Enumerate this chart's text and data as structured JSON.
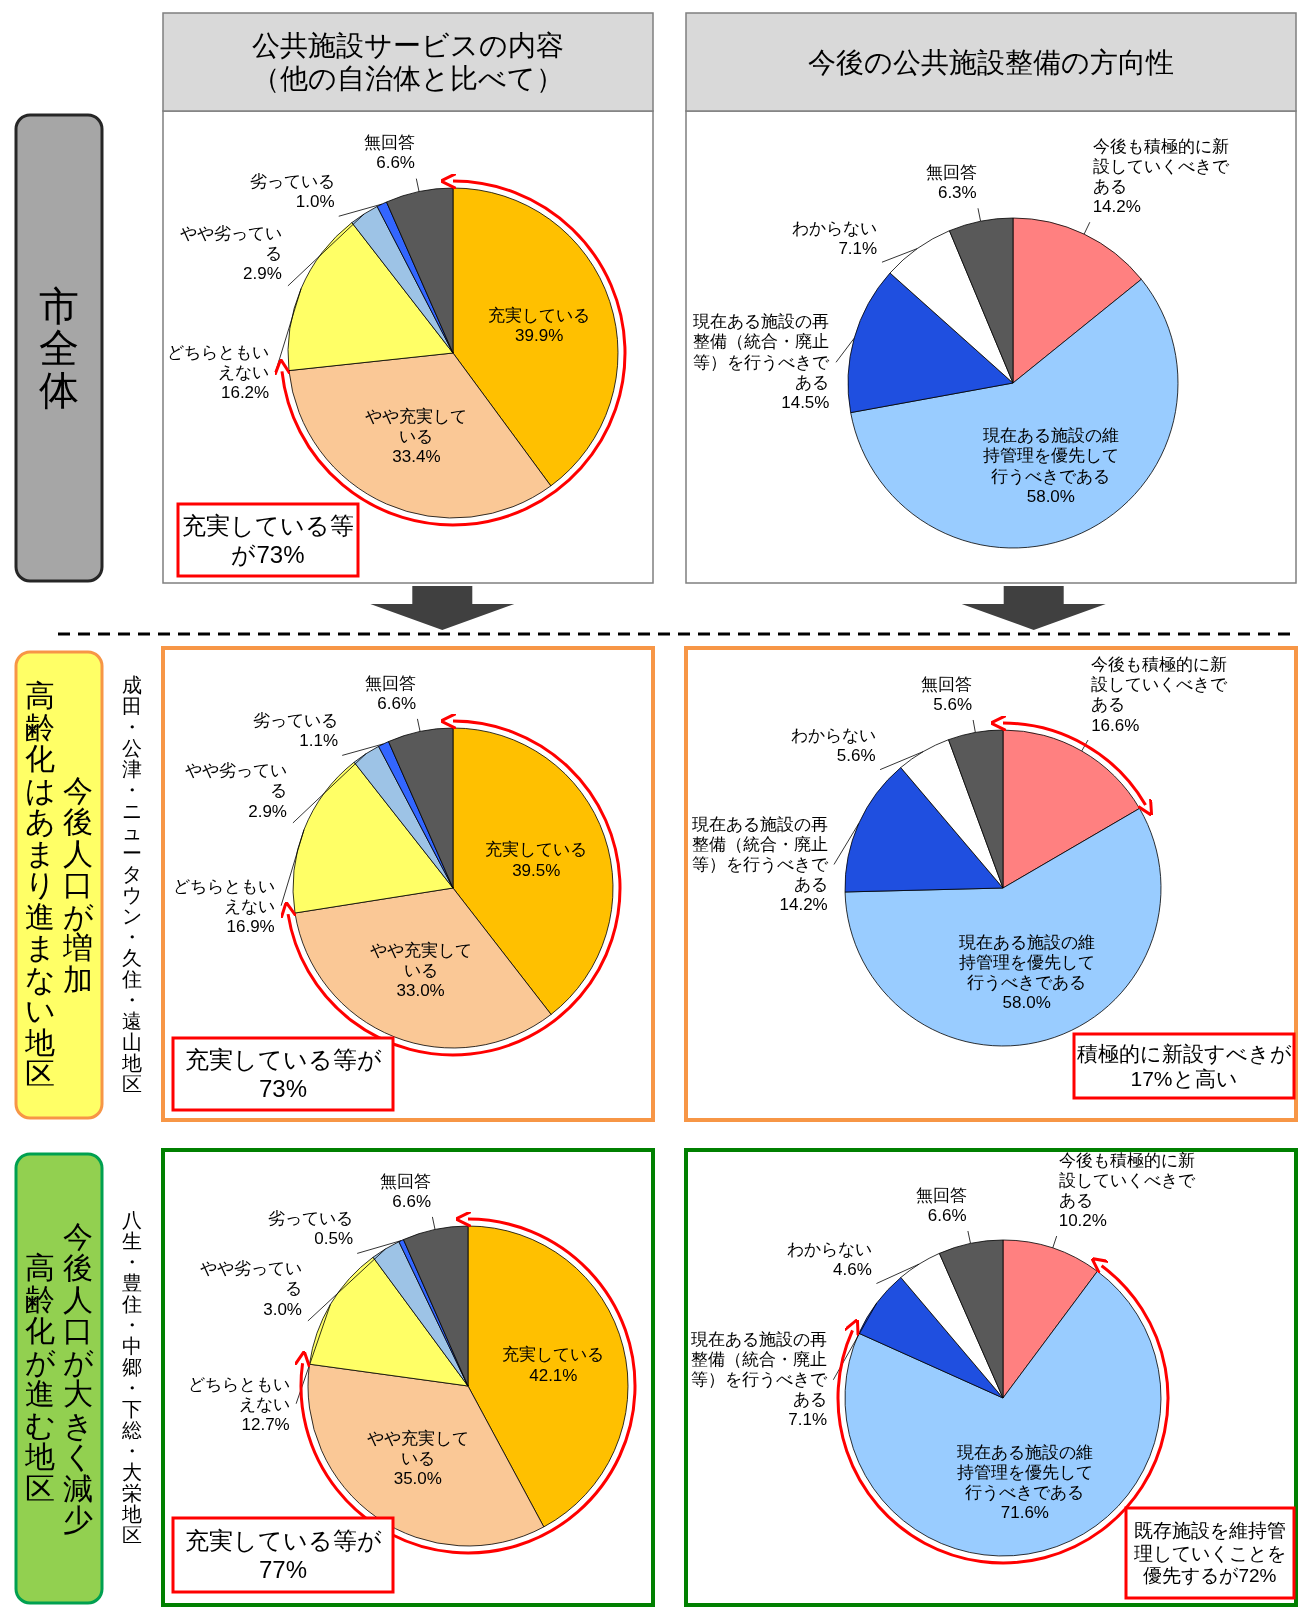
{
  "chart_data": [
    {
      "type": "pie",
      "title": "公共施設サービスの内容（他の自治体と比べて）",
      "categories": [
        "充実している",
        "やや充実している",
        "どちらともいえない",
        "やや劣っている",
        "劣っている",
        "無回答"
      ],
      "values": [
        39.9,
        33.4,
        16.2,
        2.9,
        1.0,
        6.6
      ],
      "colors": [
        "#ffc000",
        "#fac896",
        "#ffff66",
        "#9dc3e6",
        "#3366ff",
        "#595959"
      ],
      "value_labels": [
        "39.9%",
        "33.4%",
        "16.2%",
        "2.9%",
        "1.0%",
        "6.6%"
      ],
      "annotations": [
        "市全体",
        "充実している等が73%"
      ]
    },
    {
      "type": "pie",
      "title": "今後の公共施設整備の方向性",
      "categories": [
        "今後も積極的に新設していくべきである",
        "現在ある施設の維持管理を優先して行うべきである",
        "現在ある施設の再整備（統合・廃止等）を行うべきである",
        "わからない",
        "無回答"
      ],
      "values": [
        14.2,
        58.0,
        14.5,
        7.1,
        6.3
      ],
      "colors": [
        "#ff8080",
        "#99ccff",
        "#1f4fe0",
        "#ffffff",
        "#595959"
      ],
      "value_labels": [
        "14.2%",
        "58.0%",
        "14.5%",
        "7.1%",
        "6.3%"
      ]
    },
    {
      "type": "pie",
      "categories": [
        "充実している",
        "やや充実している",
        "どちらともいえない",
        "やや劣っている",
        "劣っている",
        "無回答"
      ],
      "values": [
        39.5,
        33.0,
        16.9,
        2.9,
        1.1,
        6.6
      ],
      "colors": [
        "#ffc000",
        "#fac896",
        "#ffff66",
        "#9dc3e6",
        "#3366ff",
        "#595959"
      ],
      "value_labels": [
        "39.5%",
        "33.0%",
        "16.9%",
        "2.9%",
        "1.1%",
        "6.6%"
      ],
      "annotations": [
        "今後人口が増加",
        "高齢化はあまり進まない地区",
        "成田・公津・ニュータウン・久住・遠山地区",
        "充実している等が73%"
      ]
    },
    {
      "type": "pie",
      "categories": [
        "今後も積極的に新設していくべきである",
        "現在ある施設の維持管理を優先して行うべきである",
        "現在ある施設の再整備（統合・廃止等）を行うべきである",
        "わからない",
        "無回答"
      ],
      "values": [
        16.6,
        58.0,
        14.2,
        5.6,
        5.6
      ],
      "colors": [
        "#ff8080",
        "#99ccff",
        "#1f4fe0",
        "#ffffff",
        "#595959"
      ],
      "value_labels": [
        "16.6%",
        "58.0%",
        "14.2%",
        "5.6%",
        "5.6%"
      ],
      "annotations": [
        "積極的に新設すべきが17%と高い"
      ]
    },
    {
      "type": "pie",
      "categories": [
        "充実している",
        "やや充実している",
        "どちらともいえない",
        "やや劣っている",
        "劣っている",
        "無回答"
      ],
      "values": [
        42.1,
        35.0,
        12.7,
        3.0,
        0.5,
        6.6
      ],
      "colors": [
        "#ffc000",
        "#fac896",
        "#ffff66",
        "#9dc3e6",
        "#3366ff",
        "#595959"
      ],
      "value_labels": [
        "42.1%",
        "35.0%",
        "12.7%",
        "3.0%",
        "0.5%",
        "6.6%"
      ],
      "annotations": [
        "今後人口が大きく減少",
        "高齢化が進む地区",
        "八生・豊住・中郷・下総・大栄地区",
        "充実している等が77%"
      ]
    },
    {
      "type": "pie",
      "categories": [
        "今後も積極的に新設していくべきである",
        "現在ある施設の維持管理を優先して行うべきである",
        "現在ある施設の再整備（統合・廃止等）を行うべきである",
        "わからない",
        "無回答"
      ],
      "values": [
        10.2,
        71.6,
        7.1,
        4.6,
        6.6
      ],
      "colors": [
        "#ff8080",
        "#99ccff",
        "#1f4fe0",
        "#ffffff",
        "#595959"
      ],
      "value_labels": [
        "10.2%",
        "71.6%",
        "7.1%",
        "4.6%",
        "6.6%"
      ],
      "annotations": [
        "既存施設を維持管理していくことを優先するが72%"
      ]
    }
  ]
}
